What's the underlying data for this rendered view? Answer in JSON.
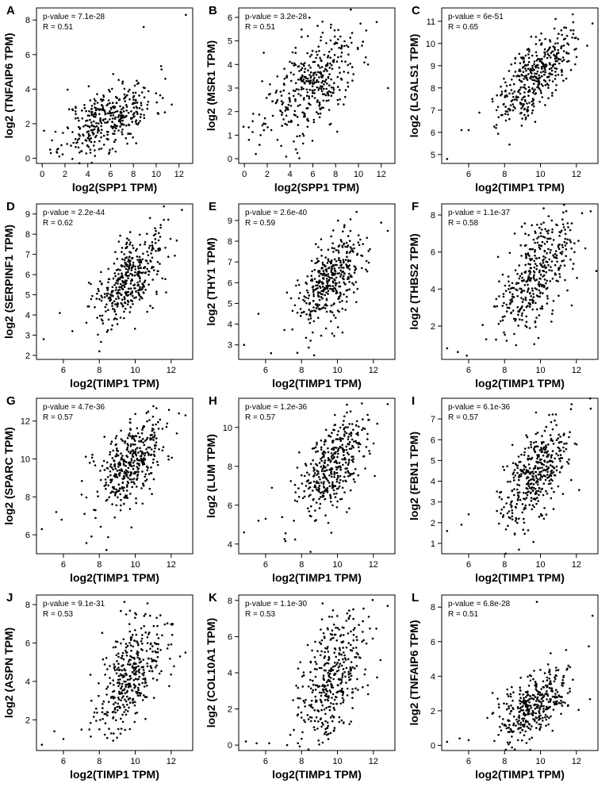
{
  "figure_title": "",
  "chart_data": [
    {
      "panel": "A",
      "type": "scatter",
      "title": "",
      "xlabel": "log2(SPP1 TPM)",
      "ylabel": "log2 (TNFAIP6 TPM)",
      "pvalue_text": "p-value = 7.1e-28",
      "r_text": "R = 0.51",
      "xlim": [
        -0.5,
        13.2
      ],
      "ylim": [
        -0.3,
        8.7
      ],
      "xticks": [
        0,
        2,
        4,
        6,
        8,
        10,
        12
      ],
      "yticks": [
        0,
        2,
        4,
        6,
        8
      ],
      "x_center": 5.8,
      "y_center": 2.3,
      "x_sd": 2.0,
      "y_sd": 1.05,
      "r": 0.51,
      "n": 380,
      "seed": 11,
      "outliers": [
        [
          12.6,
          8.3
        ],
        [
          8.9,
          7.6
        ],
        [
          10.8,
          4.6
        ],
        [
          0.7,
          0.5
        ],
        [
          1.5,
          0.1
        ]
      ]
    },
    {
      "panel": "B",
      "type": "scatter",
      "title": "",
      "xlabel": "log2(SPP1 TPM)",
      "ylabel": "log2 (MSR1 TPM)",
      "pvalue_text": "p-value = 3.2e-28",
      "r_text": "R = 0.51",
      "xlim": [
        -0.5,
        13.2
      ],
      "ylim": [
        -0.2,
        6.4
      ],
      "xticks": [
        0,
        2,
        4,
        6,
        8,
        10,
        12
      ],
      "yticks": [
        0,
        1,
        2,
        3,
        4,
        5,
        6
      ],
      "x_center": 5.8,
      "y_center": 3.1,
      "x_sd": 2.0,
      "y_sd": 1.1,
      "r": 0.51,
      "n": 380,
      "seed": 23,
      "outliers": [
        [
          0.4,
          0.8
        ],
        [
          1.0,
          0.2
        ],
        [
          12.6,
          3.0
        ],
        [
          11.6,
          5.8
        ],
        [
          1.7,
          4.5
        ]
      ]
    },
    {
      "panel": "C",
      "type": "scatter",
      "title": "",
      "xlabel": "log2(TIMP1 TPM)",
      "ylabel": "log2 (LGALS1 TPM)",
      "pvalue_text": "p-value = 6e-51",
      "r_text": "R = 0.65",
      "xlim": [
        4.5,
        13.2
      ],
      "ylim": [
        4.6,
        11.6
      ],
      "xticks": [
        6,
        8,
        10,
        12
      ],
      "yticks": [
        5,
        6,
        7,
        8,
        9,
        10,
        11
      ],
      "x_center": 9.7,
      "y_center": 8.6,
      "x_sd": 1.0,
      "y_sd": 1.0,
      "r": 0.65,
      "n": 400,
      "seed": 37,
      "outliers": [
        [
          4.8,
          4.8
        ],
        [
          5.6,
          6.1
        ],
        [
          6.0,
          6.1
        ],
        [
          12.9,
          10.9
        ],
        [
          12.6,
          9.9
        ]
      ]
    },
    {
      "panel": "D",
      "type": "scatter",
      "title": "",
      "xlabel": "log2(TIMP1 TPM)",
      "ylabel": "log2 (SERPINF1 TPM)",
      "pvalue_text": "p-value = 2.2e-44",
      "r_text": "R = 0.62",
      "xlim": [
        4.5,
        13.2
      ],
      "ylim": [
        1.8,
        9.5
      ],
      "xticks": [
        6,
        8,
        10,
        12
      ],
      "yticks": [
        2,
        3,
        4,
        5,
        6,
        7,
        8,
        9
      ],
      "x_center": 9.7,
      "y_center": 5.8,
      "x_sd": 1.0,
      "y_sd": 1.2,
      "r": 0.62,
      "n": 400,
      "seed": 41,
      "outliers": [
        [
          4.9,
          2.8
        ],
        [
          5.8,
          4.1
        ],
        [
          6.5,
          3.2
        ],
        [
          12.6,
          9.2
        ],
        [
          8.0,
          2.2
        ]
      ]
    },
    {
      "panel": "E",
      "type": "scatter",
      "title": "",
      "xlabel": "log2(TIMP1 TPM)",
      "ylabel": "log2 (THY1 TPM)",
      "pvalue_text": "p-value = 2.6e-40",
      "r_text": "R = 0.59",
      "xlim": [
        4.5,
        13.2
      ],
      "ylim": [
        2.3,
        9.8
      ],
      "xticks": [
        6,
        8,
        10,
        12
      ],
      "yticks": [
        3,
        4,
        5,
        6,
        7,
        8,
        9
      ],
      "x_center": 9.7,
      "y_center": 6.1,
      "x_sd": 1.0,
      "y_sd": 1.2,
      "r": 0.59,
      "n": 400,
      "seed": 53,
      "outliers": [
        [
          4.8,
          3.0
        ],
        [
          5.6,
          4.5
        ],
        [
          6.3,
          2.6
        ],
        [
          12.8,
          8.5
        ],
        [
          8.7,
          2.5
        ]
      ]
    },
    {
      "panel": "F",
      "type": "scatter",
      "title": "",
      "xlabel": "log2(TIMP1 TPM)",
      "ylabel": "log2 (THBS2 TPM)",
      "pvalue_text": "p-value = 1.1e-37",
      "r_text": "R = 0.58",
      "xlim": [
        4.5,
        13.2
      ],
      "ylim": [
        0.2,
        8.6
      ],
      "xticks": [
        6,
        8,
        10,
        12
      ],
      "yticks": [
        2,
        4,
        6,
        8
      ],
      "x_center": 9.7,
      "y_center": 4.6,
      "x_sd": 1.0,
      "y_sd": 1.6,
      "r": 0.58,
      "n": 400,
      "seed": 67,
      "outliers": [
        [
          4.8,
          0.8
        ],
        [
          5.4,
          0.6
        ],
        [
          5.9,
          0.4
        ],
        [
          12.8,
          8.2
        ],
        [
          12.5,
          6.2
        ]
      ]
    },
    {
      "panel": "G",
      "type": "scatter",
      "title": "",
      "xlabel": "log2(TIMP1 TPM)",
      "ylabel": "log2 (SPARC TPM)",
      "pvalue_text": "p-value = 4.7e-36",
      "r_text": "R = 0.57",
      "xlim": [
        4.5,
        13.2
      ],
      "ylim": [
        5.0,
        13.2
      ],
      "xticks": [
        6,
        8,
        10,
        12
      ],
      "yticks": [
        6,
        8,
        10,
        12
      ],
      "x_center": 9.7,
      "y_center": 9.7,
      "x_sd": 1.0,
      "y_sd": 1.3,
      "r": 0.57,
      "n": 400,
      "seed": 71,
      "outliers": [
        [
          4.8,
          6.3
        ],
        [
          5.6,
          7.2
        ],
        [
          5.9,
          6.8
        ],
        [
          12.8,
          12.3
        ],
        [
          8.4,
          5.2
        ]
      ]
    },
    {
      "panel": "H",
      "type": "scatter",
      "title": "",
      "xlabel": "log2(TIMP1 TPM)",
      "ylabel": "log2 (LUM TPM)",
      "pvalue_text": "p-value = 1.2e-36",
      "r_text": "R = 0.57",
      "xlim": [
        4.5,
        13.2
      ],
      "ylim": [
        3.5,
        11.5
      ],
      "xticks": [
        6,
        8,
        10,
        12
      ],
      "yticks": [
        4,
        6,
        8,
        10
      ],
      "x_center": 9.7,
      "y_center": 8.0,
      "x_sd": 1.0,
      "y_sd": 1.3,
      "r": 0.57,
      "n": 400,
      "seed": 83,
      "outliers": [
        [
          4.8,
          4.6
        ],
        [
          5.6,
          5.2
        ],
        [
          6.0,
          5.3
        ],
        [
          12.8,
          11.2
        ],
        [
          8.5,
          3.6
        ]
      ]
    },
    {
      "panel": "I",
      "type": "scatter",
      "title": "",
      "xlabel": "log2(TIMP1 TPM)",
      "ylabel": "log2 (FBN1 TPM)",
      "pvalue_text": "p-value = 6.1e-36",
      "r_text": "R = 0.57",
      "xlim": [
        4.5,
        13.2
      ],
      "ylim": [
        0.5,
        8.0
      ],
      "xticks": [
        6,
        8,
        10,
        12
      ],
      "yticks": [
        1,
        2,
        3,
        4,
        5,
        6,
        7
      ],
      "x_center": 9.7,
      "y_center": 4.3,
      "x_sd": 1.0,
      "y_sd": 1.3,
      "r": 0.57,
      "n": 400,
      "seed": 97,
      "outliers": [
        [
          4.8,
          1.6
        ],
        [
          5.6,
          1.9
        ],
        [
          6.0,
          2.4
        ],
        [
          12.8,
          7.5
        ],
        [
          8.8,
          0.7
        ]
      ]
    },
    {
      "panel": "J",
      "type": "scatter",
      "title": "",
      "xlabel": "log2(TIMP1 TPM)",
      "ylabel": "log2 (ASPN TPM)",
      "pvalue_text": "p-value = 9.1e-31",
      "r_text": "R = 0.53",
      "xlim": [
        4.5,
        13.2
      ],
      "ylim": [
        0.4,
        8.5
      ],
      "xticks": [
        6,
        8,
        10,
        12
      ],
      "yticks": [
        2,
        4,
        6,
        8
      ],
      "x_center": 9.7,
      "y_center": 4.3,
      "x_sd": 1.0,
      "y_sd": 1.5,
      "r": 0.53,
      "n": 400,
      "seed": 103,
      "outliers": [
        [
          4.8,
          0.7
        ],
        [
          5.5,
          1.4
        ],
        [
          6.0,
          1.0
        ],
        [
          12.8,
          5.5
        ],
        [
          12.5,
          5.3
        ]
      ]
    },
    {
      "panel": "K",
      "type": "scatter",
      "title": "",
      "xlabel": "log2(TIMP1 TPM)",
      "ylabel": "log2 (COL10A1 TPM)",
      "pvalue_text": "p-value = 1.1e-30",
      "r_text": "R = 0.53",
      "xlim": [
        4.5,
        13.2
      ],
      "ylim": [
        -0.3,
        8.3
      ],
      "xticks": [
        6,
        8,
        10,
        12
      ],
      "yticks": [
        0,
        2,
        4,
        6,
        8
      ],
      "x_center": 9.7,
      "y_center": 3.7,
      "x_sd": 1.0,
      "y_sd": 2.0,
      "r": 0.53,
      "n": 400,
      "seed": 113,
      "outliers": [
        [
          4.9,
          0.2
        ],
        [
          5.5,
          0.1
        ],
        [
          6.2,
          0.1
        ],
        [
          12.8,
          7.7
        ],
        [
          12.4,
          4.7
        ]
      ]
    },
    {
      "panel": "L",
      "type": "scatter",
      "title": "",
      "xlabel": "log2(TIMP1 TPM)",
      "ylabel": "log2 (TNFAIP6 TPM)",
      "pvalue_text": "p-value = 6.8e-28",
      "r_text": "R = 0.51",
      "xlim": [
        4.5,
        13.2
      ],
      "ylim": [
        -0.3,
        8.7
      ],
      "xticks": [
        6,
        8,
        10,
        12
      ],
      "yticks": [
        0,
        2,
        4,
        6,
        8
      ],
      "x_center": 9.7,
      "y_center": 2.3,
      "x_sd": 1.0,
      "y_sd": 1.05,
      "r": 0.51,
      "n": 380,
      "seed": 127,
      "outliers": [
        [
          12.9,
          7.5
        ],
        [
          9.8,
          8.3
        ],
        [
          4.8,
          0.2
        ],
        [
          5.5,
          0.4
        ],
        [
          6.0,
          0.3
        ]
      ]
    }
  ]
}
